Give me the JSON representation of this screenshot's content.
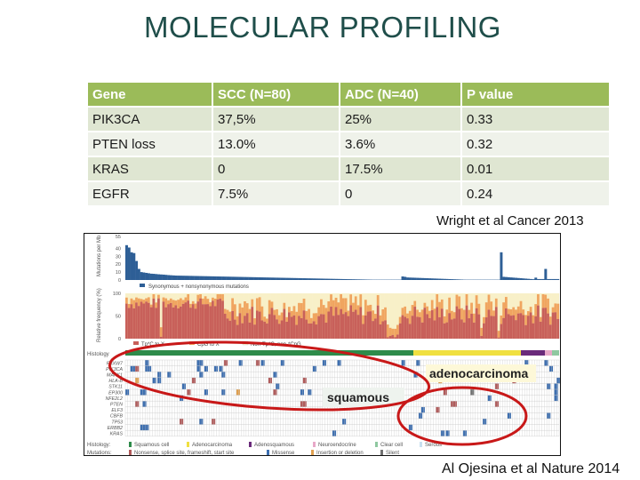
{
  "slide": {
    "title": "MOLECULAR PROFILING",
    "citation_top": "Wright et al Cancer 2013",
    "citation_bottom": "Al Ojesina et al Nature 2014"
  },
  "table": {
    "headers": [
      "Gene",
      "SCC (N=80)",
      "ADC (N=40)",
      "P value"
    ],
    "rows": [
      [
        "PIK3CA",
        "37,5%",
        "25%",
        "0.33"
      ],
      [
        "PTEN loss",
        "13.0%",
        "3.6%",
        "0.32"
      ],
      [
        "KRAS",
        "0",
        "17.5%",
        "0.01"
      ],
      [
        "EGFR",
        "7.5%",
        "0",
        "0.24"
      ]
    ],
    "colors": {
      "header_bg": "#9bbb59",
      "row_odd": "#dfe6d2",
      "row_even": "#eff2ea"
    }
  },
  "figure": {
    "mutation_rate_panel": {
      "ylabel": "Mutations per Mb",
      "yticks": [
        "55",
        "40",
        "30",
        "20",
        "10",
        "0"
      ],
      "legend": "Synonymous + nonsynonymous mutations",
      "color": "#2e5f96"
    },
    "relative_frequency_panel": {
      "ylabel": "Relative frequency (%)",
      "yticks": [
        "100",
        "50",
        "0"
      ],
      "legend": [
        "Tp*C to X",
        "CpG to X",
        "Non-Tp*C, non-*CpG"
      ],
      "colors": [
        "#c8605a",
        "#f0a560",
        "#f8f0c8"
      ]
    },
    "histology_label": "Histology",
    "genes": [
      "FBXW7",
      "PIK3CA",
      "MAPK1",
      "HLA-B",
      "STK11",
      "EP300",
      "NFE2L2",
      "PTEN",
      "ELF3",
      "CBFB",
      "TP53",
      "ERBB2",
      "KRAS"
    ],
    "annotations": {
      "squamous": "squamous",
      "adenocarcinoma": "adenocarcinoma"
    },
    "legend_histology": {
      "label": "Histology:",
      "items": [
        "Squamous cell",
        "Adenocarcinoma",
        "Adenosquamous",
        "Neuroendocrine",
        "Clear cell",
        "Serous"
      ],
      "colors": [
        "#2e8b4a",
        "#f0e040",
        "#6a2a7a",
        "#e8a8c8",
        "#8fc8a0",
        "#c8e0f0"
      ]
    },
    "legend_mutations": {
      "label": "Mutations:",
      "items": [
        "Nonsense, splice site, frameshift, start site",
        "Missense",
        "Insertion or deletion",
        "Silent"
      ],
      "colors": [
        "#b05a5a",
        "#3c6eb0",
        "#e0a050",
        "#707070"
      ]
    }
  }
}
